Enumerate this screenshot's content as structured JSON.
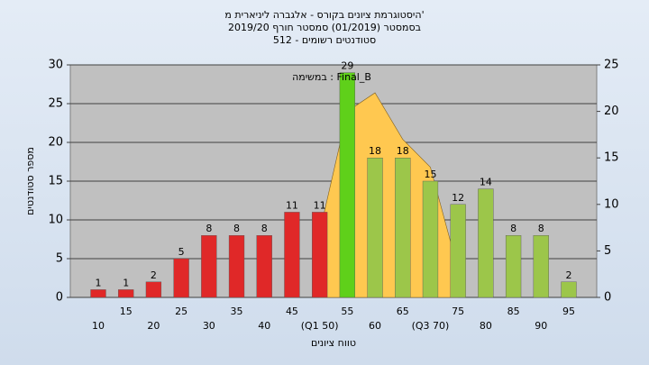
{
  "chart_data": {
    "type": "bar",
    "title": [
      "היסטוגרמת ציונים בקורס - אלגברה ליניארית מ'",
      "בסמסטר (01/2019) סמסטר חורף 2019/20",
      "סטודנטים רשומים - 512"
    ],
    "annotation": "במשימה : Final_B",
    "ylabel": "מספר סטודנטים",
    "xlabel": "טווח ציונים",
    "categories": [
      "10",
      "15",
      "20",
      "25",
      "30",
      "35",
      "40",
      "45",
      "(Q1 50)",
      "55",
      "60",
      "65",
      "(Q3 70)",
      "75",
      "80",
      "85",
      "90",
      "95"
    ],
    "series": [
      {
        "type": "bar",
        "values": [
          1,
          1,
          2,
          5,
          8,
          8,
          8,
          11,
          11,
          29,
          18,
          18,
          15,
          12,
          14,
          8,
          8,
          2
        ],
        "colors": [
          "#e02828",
          "#e02828",
          "#e02828",
          "#e02828",
          "#e02828",
          "#e02828",
          "#e02828",
          "#e02828",
          "#e02828",
          "#5fd01a",
          "#9cc64a",
          "#9cc64a",
          "#9cc64a",
          "#9cc64a",
          "#9cc64a",
          "#9cc64a",
          "#9cc64a",
          "#9cc64a"
        ]
      },
      {
        "type": "area",
        "axis": "y2",
        "color": "#ffc850",
        "values": [
          null,
          null,
          null,
          null,
          null,
          null,
          null,
          null,
          7,
          20,
          22,
          17,
          14,
          3,
          null,
          null,
          null,
          null
        ]
      }
    ],
    "ylim": [
      0,
      30
    ],
    "yticks": [
      0,
      5,
      10,
      15,
      20,
      25,
      30
    ],
    "y2lim": [
      0,
      25
    ],
    "y2ticks": [
      0,
      5,
      10,
      15,
      20,
      25
    ],
    "grid": true
  }
}
